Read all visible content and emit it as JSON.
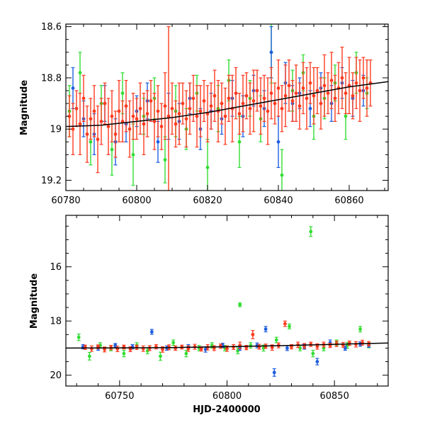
{
  "chart_data": [
    {
      "type": "scatter",
      "ylabel": "Magnitude",
      "xlabel": "",
      "xlim": [
        60780,
        60871
      ],
      "ylim": [
        19.24,
        18.59
      ],
      "y_inverted": true,
      "xticks": [
        60780,
        60800,
        60820,
        60840,
        60860
      ],
      "yticks": [
        18.6,
        18.8,
        19.0,
        19.2
      ],
      "ytick_labels": [
        "18.6",
        "18.8",
        "19",
        "19.2"
      ],
      "error_bars": true,
      "colors": {
        "blue": "#1f5fe0",
        "green": "#33dd33",
        "red": "#ff3b1f",
        "trend": "#000000"
      },
      "trend": {
        "x": [
          60780,
          60790,
          60800,
          60810,
          60820,
          60830,
          60840,
          60850,
          60860,
          60871
        ],
        "y": [
          18.99,
          18.985,
          18.97,
          18.955,
          18.935,
          18.91,
          18.885,
          18.86,
          18.835,
          18.815
        ]
      },
      "series": [
        {
          "color": "green",
          "x": [
            60781,
            60784,
            60787,
            60790,
            60793,
            60796,
            60799,
            60802,
            60805,
            60808,
            60811,
            60814,
            60817,
            60820,
            60823,
            60826,
            60829,
            60832,
            60835,
            60838,
            60841,
            60844,
            60847,
            60850,
            60853,
            60856,
            60859,
            60862,
            60865
          ],
          "y": [
            18.93,
            18.78,
            19.05,
            18.9,
            19.08,
            18.86,
            19.1,
            18.95,
            18.88,
            19.12,
            18.93,
            19.0,
            18.86,
            19.15,
            18.92,
            18.81,
            19.05,
            18.88,
            18.96,
            18.7,
            19.18,
            18.85,
            18.78,
            18.95,
            18.88,
            18.82,
            18.95,
            18.78,
            18.86
          ],
          "err": [
            0.1,
            0.08,
            0.09,
            0.07,
            0.1,
            0.08,
            0.12,
            0.07,
            0.08,
            0.09,
            0.1,
            0.08,
            0.07,
            0.11,
            0.09,
            0.08,
            0.1,
            0.07,
            0.09,
            0.12,
            0.1,
            0.08,
            0.07,
            0.09,
            0.08,
            0.07,
            0.09,
            0.08,
            0.06
          ]
        },
        {
          "color": "blue",
          "x": [
            60782,
            60785,
            60788,
            60791,
            60794,
            60797,
            60800,
            60803,
            60806,
            60809,
            60812,
            60815,
            60818,
            60821,
            60824,
            60827,
            60830,
            60833,
            60836,
            60838,
            60840,
            60842,
            60844,
            60846,
            60849,
            60852,
            60855,
            60858,
            60861,
            60864
          ],
          "y": [
            18.84,
            18.96,
            19.02,
            18.9,
            19.05,
            18.98,
            18.93,
            18.89,
            19.05,
            18.95,
            18.97,
            18.88,
            19.0,
            18.93,
            18.96,
            18.88,
            18.95,
            18.85,
            18.92,
            18.7,
            19.05,
            18.82,
            18.9,
            18.86,
            18.92,
            18.84,
            18.9,
            18.82,
            18.88,
            18.85
          ],
          "err": [
            0.08,
            0.07,
            0.08,
            0.07,
            0.09,
            0.07,
            0.06,
            0.07,
            0.08,
            0.09,
            0.07,
            0.06,
            0.08,
            0.07,
            0.06,
            0.07,
            0.08,
            0.06,
            0.07,
            0.1,
            0.1,
            0.08,
            0.07,
            0.06,
            0.07,
            0.06,
            0.07,
            0.06,
            0.07,
            0.06
          ]
        },
        {
          "color": "red",
          "x": [
            60781,
            60782,
            60783,
            60784,
            60785,
            60786,
            60787,
            60788,
            60789,
            60790,
            60791,
            60792,
            60793,
            60794,
            60795,
            60796,
            60797,
            60798,
            60799,
            60800,
            60801,
            60802,
            60803,
            60804,
            60805,
            60806,
            60807,
            60808,
            60809,
            60810,
            60811,
            60812,
            60813,
            60814,
            60815,
            60816,
            60817,
            60818,
            60819,
            60820,
            60821,
            60822,
            60823,
            60824,
            60825,
            60826,
            60827,
            60828,
            60829,
            60830,
            60831,
            60832,
            60833,
            60834,
            60835,
            60836,
            60837,
            60838,
            60839,
            60840,
            60841,
            60842,
            60843,
            60844,
            60845,
            60846,
            60847,
            60848,
            60849,
            60850,
            60851,
            60852,
            60853,
            60854,
            60855,
            60856,
            60857,
            60858,
            60859,
            60860,
            60861,
            60862,
            60863,
            60864,
            60865,
            60866
          ],
          "y": [
            18.95,
            19.0,
            18.92,
            18.98,
            18.88,
            19.02,
            18.96,
            18.93,
            19.04,
            18.97,
            18.9,
            18.99,
            18.95,
            19.02,
            18.93,
            18.97,
            18.91,
            19.0,
            18.95,
            18.96,
            18.92,
            18.98,
            18.94,
            18.89,
            18.97,
            18.93,
            18.99,
            18.91,
            18.95,
            18.92,
            18.98,
            18.94,
            18.9,
            18.96,
            18.92,
            18.88,
            18.95,
            18.93,
            18.89,
            18.94,
            18.91,
            18.87,
            18.93,
            18.9,
            18.95,
            18.88,
            18.92,
            18.86,
            18.94,
            18.9,
            18.87,
            18.92,
            18.89,
            18.85,
            18.91,
            18.88,
            18.93,
            18.86,
            18.9,
            18.84,
            18.92,
            18.87,
            18.83,
            18.89,
            18.86,
            18.91,
            18.84,
            18.88,
            18.82,
            18.87,
            18.85,
            18.9,
            18.83,
            18.86,
            18.81,
            18.88,
            18.84,
            18.8,
            18.86,
            18.83,
            18.87,
            18.82,
            18.85,
            18.8,
            18.84,
            18.82
          ],
          "err": [
            0.08,
            0.1,
            0.07,
            0.12,
            0.09,
            0.11,
            0.08,
            0.1,
            0.13,
            0.09,
            0.08,
            0.11,
            0.1,
            0.09,
            0.12,
            0.08,
            0.1,
            0.11,
            0.09,
            0.08,
            0.1,
            0.12,
            0.09,
            0.08,
            0.11,
            0.1,
            0.09,
            0.13,
            0.35,
            0.1,
            0.09,
            0.12,
            0.08,
            0.11,
            0.1,
            0.09,
            0.12,
            0.1,
            0.08,
            0.11,
            0.09,
            0.1,
            0.12,
            0.08,
            0.11,
            0.09,
            0.13,
            0.1,
            0.08,
            0.11,
            0.09,
            0.1,
            0.12,
            0.08,
            0.11,
            0.09,
            0.13,
            0.1,
            0.08,
            0.11,
            0.09,
            0.12,
            0.1,
            0.08,
            0.11,
            0.09,
            0.1,
            0.12,
            0.08,
            0.11,
            0.09,
            0.1,
            0.12,
            0.08,
            0.11,
            0.09,
            0.1,
            0.12,
            0.08,
            0.11,
            0.09,
            0.1,
            0.12,
            0.08,
            0.11,
            0.09
          ]
        }
      ]
    },
    {
      "type": "scatter",
      "ylabel": "Magnitude",
      "xlabel": "HJD-2400000",
      "xlim": [
        60725,
        60875
      ],
      "ylim": [
        20.4,
        14.1
      ],
      "y_inverted": true,
      "xticks": [
        60750,
        60800,
        60850
      ],
      "yticks": [
        16,
        18,
        20
      ],
      "error_bars": true,
      "colors": {
        "blue": "#1f5fe0",
        "green": "#33dd33",
        "red": "#ff3b1f",
        "trend": "#000000"
      },
      "trend": {
        "x": [
          60725,
          60750,
          60775,
          60800,
          60825,
          60850,
          60875
        ],
        "y": [
          19.0,
          18.99,
          18.98,
          18.95,
          18.91,
          18.86,
          18.81
        ]
      },
      "series": [
        {
          "color": "green",
          "x": [
            60731,
            60736,
            60741,
            60746,
            60752,
            60758,
            60763,
            60769,
            60775,
            60781,
            60787,
            60793,
            60799,
            60805,
            60806,
            60811,
            60817,
            60823,
            60829,
            60834,
            60839,
            60840,
            60845,
            60851,
            60856,
            60862,
            60866
          ],
          "y": [
            18.6,
            19.3,
            18.9,
            19.0,
            19.2,
            18.9,
            19.1,
            19.3,
            18.8,
            19.2,
            19.0,
            18.9,
            19.0,
            19.1,
            17.4,
            18.9,
            19.0,
            18.7,
            18.2,
            19.0,
            14.7,
            19.2,
            19.0,
            18.8,
            18.9,
            18.3,
            18.9
          ],
          "err": [
            0.12,
            0.14,
            0.1,
            0.1,
            0.12,
            0.1,
            0.11,
            0.15,
            0.1,
            0.12,
            0.1,
            0.1,
            0.1,
            0.11,
            0.07,
            0.1,
            0.11,
            0.1,
            0.09,
            0.1,
            0.18,
            0.12,
            0.1,
            0.1,
            0.11,
            0.1,
            0.09
          ]
        },
        {
          "color": "blue",
          "x": [
            60733,
            60740,
            60748,
            60756,
            60765,
            60772,
            60782,
            60790,
            60798,
            60806,
            60814,
            60818,
            60822,
            60828,
            60836,
            60842,
            60848,
            60855,
            60862,
            60866
          ],
          "y": [
            18.95,
            19.0,
            18.9,
            18.95,
            18.4,
            19.0,
            18.95,
            19.05,
            18.9,
            19.0,
            18.9,
            18.3,
            19.9,
            19.0,
            18.95,
            19.5,
            18.8,
            19.0,
            18.85,
            18.9
          ],
          "err": [
            0.08,
            0.08,
            0.07,
            0.08,
            0.09,
            0.08,
            0.08,
            0.1,
            0.08,
            0.08,
            0.09,
            0.1,
            0.14,
            0.09,
            0.09,
            0.12,
            0.1,
            0.08,
            0.08,
            0.07
          ]
        },
        {
          "color": "red",
          "x": [
            60734,
            60737,
            60740,
            60743,
            60746,
            60749,
            60752,
            60755,
            60758,
            60761,
            60764,
            60767,
            60770,
            60773,
            60776,
            60779,
            60782,
            60785,
            60788,
            60791,
            60794,
            60797,
            60800,
            60803,
            60806,
            60809,
            60812,
            60815,
            60818,
            60821,
            60824,
            60827,
            60830,
            60833,
            60836,
            60839,
            60842,
            60845,
            60848,
            60851,
            60854,
            60857,
            60860,
            60863,
            60866
          ],
          "y": [
            18.97,
            19.02,
            18.95,
            19.05,
            18.98,
            19.03,
            18.96,
            19.04,
            18.97,
            19.02,
            19.0,
            18.95,
            19.05,
            18.97,
            19.0,
            18.96,
            19.02,
            18.95,
            19.03,
            18.97,
            19.0,
            18.93,
            19.02,
            18.96,
            18.9,
            18.98,
            18.5,
            18.95,
            18.93,
            18.98,
            18.9,
            18.1,
            18.95,
            18.88,
            18.92,
            18.86,
            18.94,
            18.87,
            18.9,
            18.84,
            18.88,
            18.82,
            18.86,
            18.8,
            18.84
          ],
          "err": [
            0.08,
            0.1,
            0.07,
            0.09,
            0.08,
            0.1,
            0.07,
            0.09,
            0.08,
            0.1,
            0.09,
            0.08,
            0.1,
            0.09,
            0.08,
            0.07,
            0.1,
            0.09,
            0.08,
            0.1,
            0.09,
            0.08,
            0.1,
            0.09,
            0.12,
            0.08,
            0.15,
            0.09,
            0.08,
            0.1,
            0.09,
            0.1,
            0.08,
            0.1,
            0.09,
            0.08,
            0.1,
            0.09,
            0.08,
            0.1,
            0.09,
            0.08,
            0.1,
            0.09,
            0.08
          ]
        }
      ]
    }
  ]
}
